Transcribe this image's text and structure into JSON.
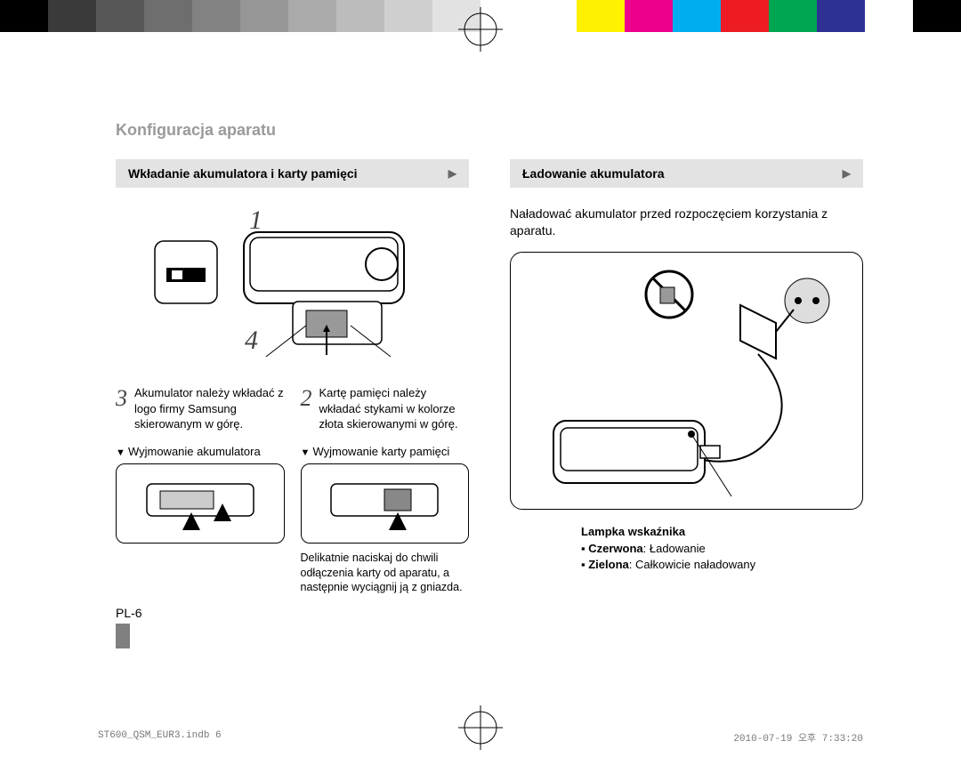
{
  "color_bar": [
    "#000000",
    "#3a3a3a",
    "#575757",
    "#6e6e6e",
    "#828282",
    "#969696",
    "#aaaaaa",
    "#bcbcbc",
    "#cfcfcf",
    "#e2e2e2",
    "#ffffff",
    "#ffffff",
    "#fff200",
    "#ec008c",
    "#00aeef",
    "#ed1c24",
    "#00a651",
    "#2e3192",
    "#ffffff",
    "#000000"
  ],
  "title": "Konfiguracja aparatu",
  "left": {
    "header": "Wkładanie akumulatora i karty pamięci",
    "num1": "1",
    "num4": "4",
    "step3_num": "3",
    "step3_text": "Akumulator należy wkładać z logo firmy Samsung skierowanym w górę.",
    "step2_num": "2",
    "step2_text": "Kartę pamięci należy wkładać stykami w kolorze złota skierowanymi w górę.",
    "remove_battery_label": "Wyjmowanie akumulatora",
    "remove_card_label": "Wyjmowanie karty pamięci",
    "card_note": "Delikatnie naciskaj do chwili odłączenia karty od aparatu, a następnie wyciągnij ją z gniazda."
  },
  "right": {
    "header": "Ładowanie akumulatora",
    "intro": "Naładować akumulator przed rozpoczęciem korzystania z aparatu.",
    "indicator_title": "Lampka wskaźnika",
    "red_label": "Czerwona",
    "red_text": ": Ładowanie",
    "green_label": "Zielona",
    "green_text": ": Całkowicie naładowany"
  },
  "page_number": "PL-6",
  "footer_left": "ST600_QSM_EUR3.indb   6",
  "footer_right": "2010-07-19   오후 7:33:20"
}
